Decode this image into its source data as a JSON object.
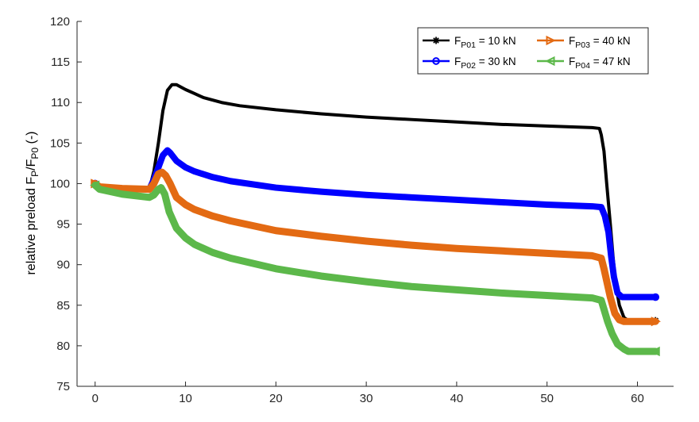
{
  "chart_data": {
    "type": "line",
    "title": "",
    "xlabel": "",
    "ylabel": {
      "prefix": "relative preload F",
      "sub1": "P",
      "mid": "/F",
      "sub2": "P0",
      "suffix": " (-)"
    },
    "xlim": [
      -2,
      64
    ],
    "ylim": [
      75,
      120
    ],
    "xticks": [
      0,
      10,
      20,
      30,
      40,
      50,
      60
    ],
    "yticks": [
      75,
      80,
      85,
      90,
      95,
      100,
      105,
      110,
      115,
      120
    ],
    "grid": false,
    "legend_position": "top-right",
    "series": [
      {
        "legend": {
          "base": "F",
          "sub": "P01",
          "rest": " = 10 kN"
        },
        "color": "#000000",
        "marker": "asterisk",
        "linewidth": 4,
        "points": [
          [
            0,
            100
          ],
          [
            0.5,
            99.6
          ],
          [
            3,
            99.4
          ],
          [
            6,
            99.3
          ],
          [
            6.5,
            101.5
          ],
          [
            7,
            105
          ],
          [
            7.5,
            109
          ],
          [
            8,
            111.5
          ],
          [
            8.5,
            112.2
          ],
          [
            9,
            112.2
          ],
          [
            10,
            111.6
          ],
          [
            11,
            111.1
          ],
          [
            12,
            110.6
          ],
          [
            14,
            110.0
          ],
          [
            16,
            109.6
          ],
          [
            20,
            109.1
          ],
          [
            25,
            108.6
          ],
          [
            30,
            108.2
          ],
          [
            35,
            107.9
          ],
          [
            40,
            107.6
          ],
          [
            45,
            107.3
          ],
          [
            50,
            107.1
          ],
          [
            55,
            106.9
          ],
          [
            55.8,
            106.8
          ],
          [
            56,
            106
          ],
          [
            56.3,
            104
          ],
          [
            56.6,
            100
          ],
          [
            57,
            95
          ],
          [
            57.3,
            91
          ],
          [
            57.6,
            87.5
          ],
          [
            58,
            85
          ],
          [
            58.5,
            83.5
          ],
          [
            59,
            83.1
          ],
          [
            60,
            83.1
          ],
          [
            62,
            83.1
          ]
        ]
      },
      {
        "legend": {
          "base": "F",
          "sub": "P02",
          "rest": " = 30 kN"
        },
        "color": "#0000ff",
        "marker": "circle",
        "linewidth": 8,
        "points": [
          [
            0,
            100
          ],
          [
            0.5,
            99.6
          ],
          [
            3,
            99.4
          ],
          [
            6,
            99.3
          ],
          [
            6.5,
            100.5
          ],
          [
            7,
            102
          ],
          [
            7.5,
            103.5
          ],
          [
            8,
            104.1
          ],
          [
            8.3,
            103.8
          ],
          [
            9,
            102.8
          ],
          [
            10,
            102.0
          ],
          [
            11,
            101.5
          ],
          [
            13,
            100.8
          ],
          [
            15,
            100.3
          ],
          [
            20,
            99.5
          ],
          [
            25,
            99.0
          ],
          [
            30,
            98.6
          ],
          [
            35,
            98.3
          ],
          [
            40,
            98.0
          ],
          [
            45,
            97.7
          ],
          [
            50,
            97.4
          ],
          [
            55,
            97.2
          ],
          [
            56,
            97.1
          ],
          [
            56.4,
            96
          ],
          [
            56.8,
            94
          ],
          [
            57.1,
            91
          ],
          [
            57.4,
            88.5
          ],
          [
            57.8,
            86.5
          ],
          [
            58.3,
            86
          ],
          [
            59,
            86
          ],
          [
            62,
            86
          ]
        ]
      },
      {
        "legend": {
          "base": "F",
          "sub": "P03",
          "rest": " = 40 kN"
        },
        "color": "#e36a13",
        "marker": "triangle-right",
        "linewidth": 9,
        "points": [
          [
            0,
            100
          ],
          [
            0.5,
            99.6
          ],
          [
            3,
            99.4
          ],
          [
            6,
            99.3
          ],
          [
            6.5,
            100
          ],
          [
            7,
            101.2
          ],
          [
            7.4,
            101.4
          ],
          [
            7.8,
            101
          ],
          [
            8.3,
            100
          ],
          [
            9,
            98.3
          ],
          [
            10,
            97.4
          ],
          [
            11,
            96.8
          ],
          [
            13,
            96.0
          ],
          [
            15,
            95.4
          ],
          [
            20,
            94.2
          ],
          [
            25,
            93.5
          ],
          [
            30,
            92.9
          ],
          [
            35,
            92.4
          ],
          [
            40,
            92.0
          ],
          [
            45,
            91.7
          ],
          [
            50,
            91.4
          ],
          [
            55,
            91.1
          ],
          [
            56,
            90.8
          ],
          [
            56.3,
            89.5
          ],
          [
            56.7,
            87.5
          ],
          [
            57,
            86
          ],
          [
            57.5,
            84
          ],
          [
            58,
            83.2
          ],
          [
            58.5,
            83
          ],
          [
            60,
            83
          ],
          [
            62,
            83
          ]
        ]
      },
      {
        "legend": {
          "base": "F",
          "sub": "P04",
          "rest": " = 47 kN"
        },
        "color": "#5cb84a",
        "marker": "triangle-left",
        "linewidth": 9,
        "points": [
          [
            0,
            99.8
          ],
          [
            0.5,
            99.3
          ],
          [
            3,
            98.7
          ],
          [
            6,
            98.3
          ],
          [
            6.5,
            98.6
          ],
          [
            7,
            99.3
          ],
          [
            7.3,
            99.5
          ],
          [
            7.7,
            98.7
          ],
          [
            8.2,
            96.5
          ],
          [
            9,
            94.5
          ],
          [
            10,
            93.3
          ],
          [
            11,
            92.5
          ],
          [
            13,
            91.5
          ],
          [
            15,
            90.8
          ],
          [
            20,
            89.5
          ],
          [
            25,
            88.6
          ],
          [
            30,
            87.9
          ],
          [
            35,
            87.3
          ],
          [
            40,
            86.9
          ],
          [
            45,
            86.5
          ],
          [
            50,
            86.2
          ],
          [
            55,
            85.9
          ],
          [
            56,
            85.6
          ],
          [
            56.3,
            84.5
          ],
          [
            56.7,
            83
          ],
          [
            57.2,
            81.5
          ],
          [
            57.8,
            80.2
          ],
          [
            58.5,
            79.6
          ],
          [
            59,
            79.3
          ],
          [
            60,
            79.3
          ],
          [
            62,
            79.3
          ]
        ]
      }
    ]
  }
}
